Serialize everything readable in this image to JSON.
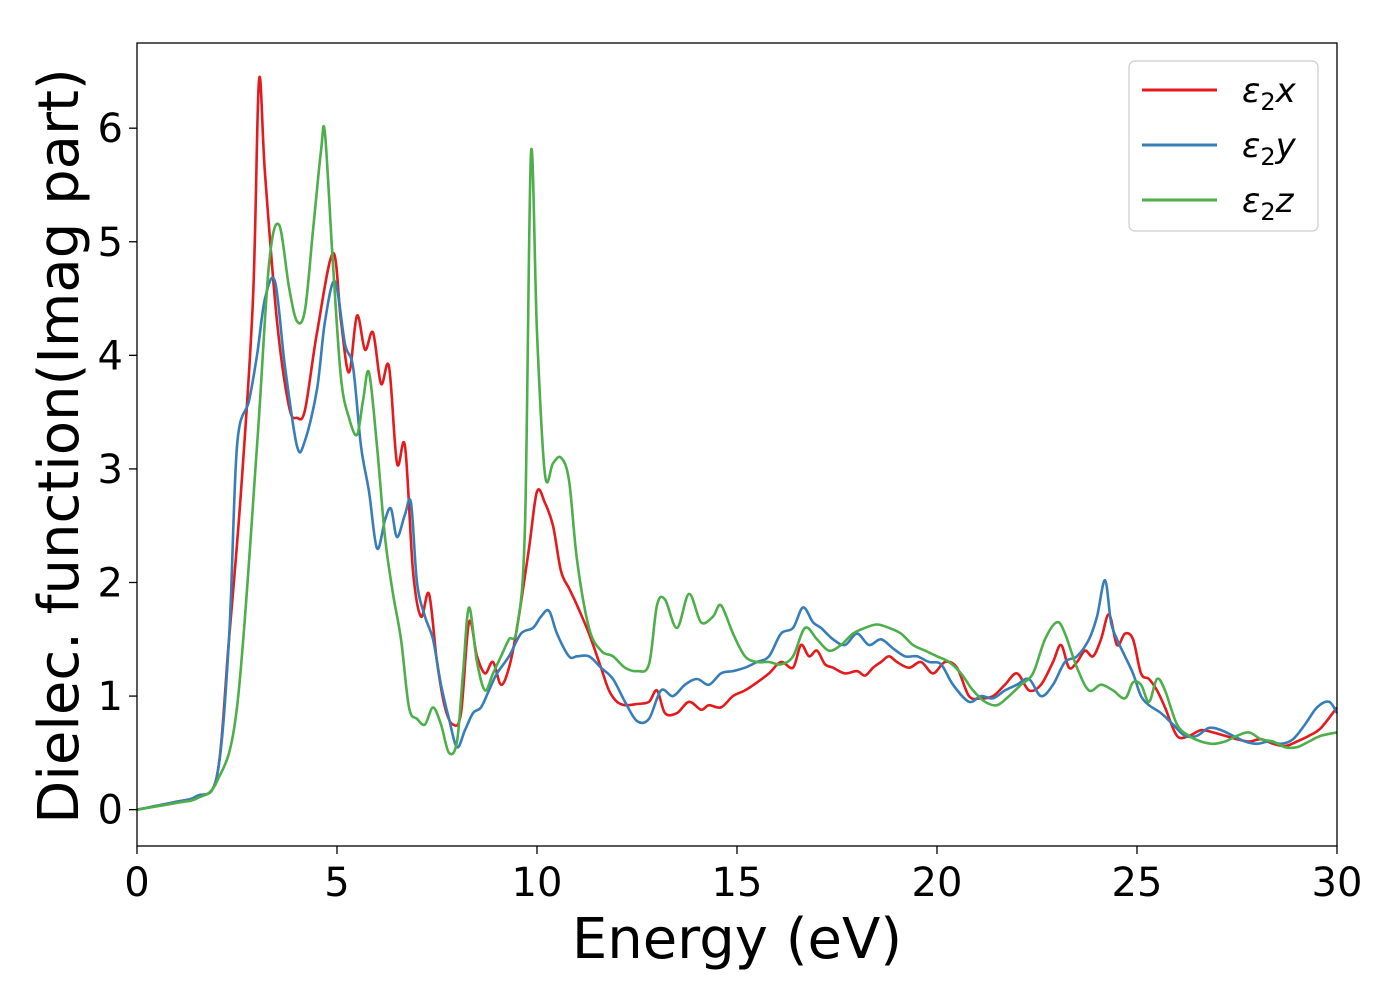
{
  "chart_data": {
    "type": "line",
    "xlabel": "Energy (eV)",
    "ylabel": "Dielec. function(Imag part)",
    "xlim": [
      0,
      30
    ],
    "ylim": [
      -0.32,
      6.75
    ],
    "xticks": [
      0,
      5,
      10,
      15,
      20,
      25,
      30
    ],
    "yticks": [
      0,
      1,
      2,
      3,
      4,
      5,
      6
    ],
    "grid": false,
    "legend_position": "top-right",
    "series": [
      {
        "name": "ε₂x",
        "legend_main": "ε",
        "legend_sub": "2",
        "legend_var": "x",
        "color": "#e41a1c",
        "x": [
          0,
          1,
          1.5,
          2,
          2.3,
          2.6,
          2.9,
          3.05,
          3.2,
          3.5,
          3.8,
          4.0,
          4.2,
          4.5,
          4.9,
          5.1,
          5.3,
          5.5,
          5.7,
          5.9,
          6.1,
          6.3,
          6.5,
          6.7,
          6.9,
          7.1,
          7.3,
          7.5,
          7.7,
          7.9,
          8.1,
          8.3,
          8.5,
          8.7,
          8.9,
          9.1,
          9.3,
          9.5,
          9.8,
          10.0,
          10.2,
          10.4,
          10.6,
          10.8,
          11.0,
          11.3,
          11.6,
          11.8,
          12.0,
          12.2,
          12.5,
          12.8,
          13.0,
          13.2,
          13.5,
          13.8,
          14.1,
          14.3,
          14.6,
          14.9,
          15.2,
          15.5,
          15.8,
          16.1,
          16.4,
          16.6,
          16.8,
          17.0,
          17.2,
          17.4,
          17.7,
          18.0,
          18.2,
          18.4,
          18.6,
          18.8,
          19.0,
          19.3,
          19.6,
          19.9,
          20.2,
          20.5,
          20.8,
          21.1,
          21.4,
          21.7,
          22.0,
          22.3,
          22.6,
          22.9,
          23.1,
          23.3,
          23.5,
          23.7,
          23.9,
          24.1,
          24.3,
          24.5,
          24.7,
          24.9,
          25.1,
          25.3,
          25.5,
          25.7,
          26.0,
          26.3,
          26.6,
          26.9,
          27.2,
          27.5,
          27.8,
          28.1,
          28.4,
          28.7,
          29.0,
          29.3,
          29.6,
          30.0
        ],
        "y": [
          0,
          0.07,
          0.12,
          0.3,
          1.5,
          2.8,
          4.5,
          6.42,
          5.6,
          4.3,
          3.55,
          3.45,
          3.52,
          4.2,
          4.9,
          4.3,
          3.85,
          4.35,
          4.05,
          4.2,
          3.75,
          3.9,
          3.05,
          3.2,
          2.1,
          1.7,
          1.9,
          1.3,
          0.9,
          0.75,
          0.85,
          1.65,
          1.35,
          1.2,
          1.3,
          1.1,
          1.25,
          1.6,
          2.3,
          2.8,
          2.7,
          2.5,
          2.1,
          1.95,
          1.8,
          1.55,
          1.25,
          1.05,
          0.95,
          0.92,
          0.93,
          0.95,
          1.05,
          0.85,
          0.85,
          0.95,
          0.88,
          0.92,
          0.9,
          1.0,
          1.05,
          1.12,
          1.2,
          1.3,
          1.25,
          1.45,
          1.35,
          1.4,
          1.28,
          1.25,
          1.2,
          1.22,
          1.18,
          1.25,
          1.3,
          1.35,
          1.3,
          1.25,
          1.3,
          1.2,
          1.3,
          1.25,
          1.0,
          0.98,
          1.0,
          1.1,
          1.2,
          1.05,
          1.1,
          1.3,
          1.45,
          1.25,
          1.3,
          1.4,
          1.35,
          1.5,
          1.72,
          1.45,
          1.55,
          1.5,
          1.2,
          1.15,
          1.05,
          0.9,
          0.65,
          0.65,
          0.7,
          0.68,
          0.65,
          0.62,
          0.6,
          0.62,
          0.58,
          0.56,
          0.6,
          0.65,
          0.72,
          0.9
        ]
      },
      {
        "name": "ε₂y",
        "legend_main": "ε",
        "legend_sub": "2",
        "legend_var": "y",
        "color": "#377eb8",
        "x": [
          0,
          1,
          1.5,
          2,
          2.3,
          2.5,
          2.8,
          3.0,
          3.2,
          3.45,
          3.7,
          4.0,
          4.2,
          4.5,
          4.7,
          4.95,
          5.2,
          5.4,
          5.6,
          5.8,
          6.0,
          6.2,
          6.35,
          6.5,
          6.7,
          6.85,
          7.0,
          7.2,
          7.4,
          7.6,
          7.8,
          8.0,
          8.2,
          8.4,
          8.6,
          8.8,
          9.0,
          9.3,
          9.6,
          9.9,
          10.1,
          10.3,
          10.5,
          10.8,
          11.0,
          11.3,
          11.6,
          11.9,
          12.2,
          12.5,
          12.8,
          13.1,
          13.4,
          13.7,
          14.0,
          14.3,
          14.6,
          14.9,
          15.2,
          15.5,
          15.8,
          16.1,
          16.4,
          16.65,
          16.9,
          17.1,
          17.4,
          17.7,
          18.0,
          18.3,
          18.6,
          18.9,
          19.2,
          19.5,
          19.8,
          20.1,
          20.4,
          20.8,
          21.1,
          21.4,
          21.7,
          22.0,
          22.3,
          22.6,
          22.9,
          23.2,
          23.5,
          23.8,
          24.0,
          24.2,
          24.35,
          24.5,
          24.7,
          24.9,
          25.1,
          25.3,
          25.6,
          25.9,
          26.2,
          26.5,
          26.8,
          27.1,
          27.4,
          27.7,
          28.0,
          28.3,
          28.6,
          28.9,
          29.2,
          29.5,
          29.8,
          30.0
        ],
        "y": [
          0,
          0.07,
          0.12,
          0.3,
          1.5,
          3.2,
          3.6,
          4.0,
          4.5,
          4.65,
          3.9,
          3.2,
          3.25,
          3.7,
          4.3,
          4.65,
          4.1,
          3.9,
          3.2,
          2.8,
          2.3,
          2.55,
          2.65,
          2.4,
          2.6,
          2.7,
          2.0,
          1.7,
          1.5,
          1.1,
          0.8,
          0.55,
          0.7,
          0.85,
          0.9,
          1.05,
          1.2,
          1.35,
          1.55,
          1.6,
          1.7,
          1.75,
          1.55,
          1.35,
          1.35,
          1.35,
          1.25,
          1.15,
          0.95,
          0.78,
          0.8,
          1.05,
          1.0,
          1.1,
          1.15,
          1.1,
          1.2,
          1.22,
          1.25,
          1.3,
          1.35,
          1.55,
          1.6,
          1.78,
          1.65,
          1.6,
          1.5,
          1.45,
          1.55,
          1.45,
          1.5,
          1.42,
          1.35,
          1.35,
          1.3,
          1.28,
          1.1,
          0.95,
          1.0,
          0.98,
          1.05,
          1.1,
          1.15,
          1.0,
          1.1,
          1.3,
          1.35,
          1.5,
          1.7,
          2.02,
          1.65,
          1.5,
          1.35,
          1.2,
          1.0,
          0.92,
          0.85,
          0.75,
          0.65,
          0.65,
          0.72,
          0.7,
          0.65,
          0.6,
          0.58,
          0.6,
          0.58,
          0.62,
          0.75,
          0.9,
          0.95,
          0.85
        ]
      },
      {
        "name": "ε₂z",
        "legend_main": "ε",
        "legend_sub": "2",
        "legend_var": "z",
        "color": "#4daf4a",
        "x": [
          0,
          1,
          1.5,
          2,
          2.5,
          3.0,
          3.3,
          3.55,
          3.8,
          4.0,
          4.2,
          4.4,
          4.6,
          4.7,
          4.9,
          5.1,
          5.3,
          5.5,
          5.65,
          5.8,
          6.0,
          6.2,
          6.4,
          6.6,
          6.8,
          7.0,
          7.2,
          7.4,
          7.6,
          7.8,
          8.0,
          8.15,
          8.3,
          8.5,
          8.7,
          8.9,
          9.1,
          9.3,
          9.5,
          9.7,
          9.85,
          10.0,
          10.2,
          10.4,
          10.6,
          10.8,
          11.0,
          11.3,
          11.6,
          11.9,
          12.2,
          12.5,
          12.8,
          13.0,
          13.2,
          13.5,
          13.8,
          14.1,
          14.4,
          14.6,
          14.9,
          15.2,
          15.5,
          15.8,
          16.1,
          16.4,
          16.7,
          17.0,
          17.3,
          17.6,
          17.9,
          18.2,
          18.5,
          18.8,
          19.1,
          19.4,
          19.7,
          20.0,
          20.3,
          20.6,
          20.9,
          21.2,
          21.5,
          21.8,
          22.1,
          22.4,
          22.7,
          23.0,
          23.2,
          23.5,
          23.8,
          24.1,
          24.4,
          24.7,
          24.9,
          25.1,
          25.3,
          25.5,
          25.7,
          26.0,
          26.3,
          26.6,
          26.9,
          27.2,
          27.5,
          27.8,
          28.1,
          28.4,
          28.7,
          29.0,
          29.3,
          29.6,
          30.0
        ],
        "y": [
          0,
          0.06,
          0.1,
          0.25,
          0.9,
          3.2,
          4.8,
          5.15,
          4.6,
          4.3,
          4.4,
          5.1,
          5.8,
          5.95,
          4.8,
          3.8,
          3.45,
          3.3,
          3.6,
          3.85,
          3.2,
          2.4,
          1.9,
          1.5,
          0.9,
          0.8,
          0.75,
          0.9,
          0.75,
          0.5,
          0.6,
          1.2,
          1.78,
          1.3,
          1.05,
          1.2,
          1.35,
          1.5,
          1.6,
          2.5,
          5.78,
          4.2,
          2.95,
          3.05,
          3.1,
          2.9,
          2.2,
          1.6,
          1.4,
          1.35,
          1.25,
          1.22,
          1.28,
          1.8,
          1.85,
          1.6,
          1.9,
          1.65,
          1.7,
          1.8,
          1.55,
          1.35,
          1.3,
          1.3,
          1.28,
          1.35,
          1.6,
          1.5,
          1.4,
          1.45,
          1.55,
          1.6,
          1.63,
          1.6,
          1.55,
          1.45,
          1.4,
          1.35,
          1.3,
          1.2,
          1.05,
          0.95,
          0.92,
          1.0,
          1.1,
          1.2,
          1.5,
          1.65,
          1.55,
          1.25,
          1.05,
          1.1,
          1.05,
          0.98,
          1.12,
          1.1,
          0.95,
          1.15,
          1.05,
          0.75,
          0.65,
          0.6,
          0.58,
          0.6,
          0.65,
          0.68,
          0.62,
          0.6,
          0.55,
          0.55,
          0.6,
          0.65,
          0.68
        ]
      }
    ]
  }
}
